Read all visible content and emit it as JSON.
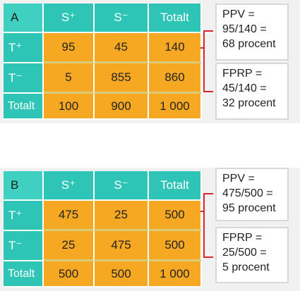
{
  "panels": [
    {
      "id": "A",
      "headers": [
        "A",
        "S⁺",
        "S⁻",
        "Totalt"
      ],
      "rows": [
        {
          "label": "T⁺",
          "values": [
            "95",
            "45",
            "140"
          ]
        },
        {
          "label": "T⁻",
          "values": [
            "5",
            "855",
            "860"
          ]
        },
        {
          "label": "Totalt",
          "values": [
            "100",
            "900",
            "1 000"
          ]
        }
      ],
      "ppv": {
        "lines": [
          "PPV =",
          "95/140 =",
          "68 procent"
        ]
      },
      "fprp": {
        "lines": [
          "FPRP =",
          "45/140 =",
          "32 procent"
        ]
      }
    },
    {
      "id": "B",
      "headers": [
        "B",
        "S⁺",
        "S⁻",
        "Totalt"
      ],
      "rows": [
        {
          "label": "T⁺",
          "values": [
            "475",
            "25",
            "500"
          ]
        },
        {
          "label": "T⁻",
          "values": [
            "25",
            "475",
            "500"
          ]
        },
        {
          "label": "Totalt",
          "values": [
            "500",
            "500",
            "1 000"
          ]
        }
      ],
      "ppv": {
        "lines": [
          "PPV =",
          "475/500 =",
          "95 procent"
        ]
      },
      "fprp": {
        "lines": [
          "FPRP =",
          "25/500 =",
          "5 procent"
        ]
      }
    }
  ],
  "colors": {
    "teal": "#2ec4b6",
    "orange": "#f7a823",
    "red": "#d8262e",
    "panel_bg": "#f1f1f1"
  }
}
